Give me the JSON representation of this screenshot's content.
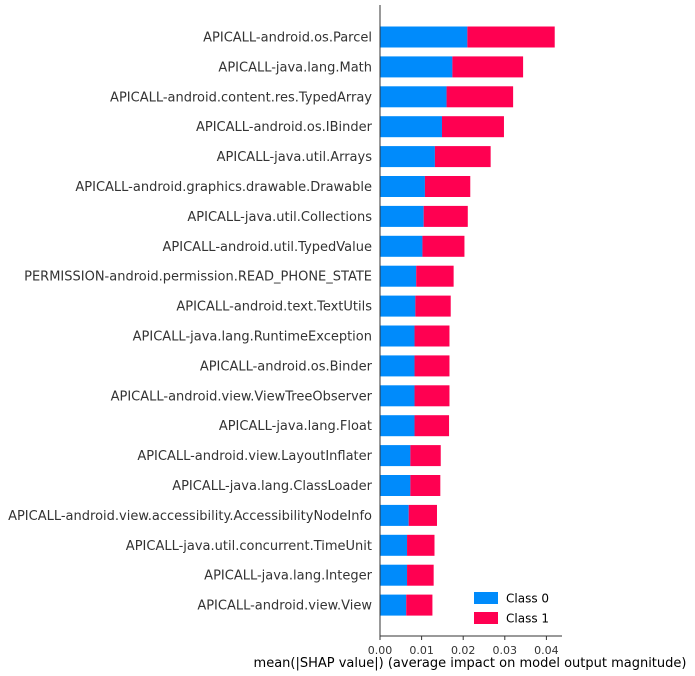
{
  "chart_data": {
    "type": "bar",
    "orientation": "horizontal",
    "stacked": true,
    "categories": [
      "APICALL-android.os.Parcel",
      "APICALL-java.lang.Math",
      "APICALL-android.content.res.TypedArray",
      "APICALL-android.os.IBinder",
      "APICALL-java.util.Arrays",
      "APICALL-android.graphics.drawable.Drawable",
      "APICALL-java.util.Collections",
      "APICALL-android.util.TypedValue",
      "PERMISSION-android.permission.READ_PHONE_STATE",
      "APICALL-android.text.TextUtils",
      "APICALL-java.lang.RuntimeException",
      "APICALL-android.os.Binder",
      "APICALL-android.view.ViewTreeObserver",
      "APICALL-java.lang.Float",
      "APICALL-android.view.LayoutInflater",
      "APICALL-java.lang.ClassLoader",
      "APICALL-android.view.accessibility.AccessibilityNodeInfo",
      "APICALL-java.util.concurrent.TimeUnit",
      "APICALL-java.lang.Integer",
      "APICALL-android.view.View"
    ],
    "series": [
      {
        "name": "Class 0",
        "color": "#008bfb",
        "values": [
          0.021,
          0.0174,
          0.016,
          0.0149,
          0.0132,
          0.0108,
          0.0105,
          0.0102,
          0.0087,
          0.0085,
          0.0083,
          0.0083,
          0.0083,
          0.0083,
          0.0073,
          0.0073,
          0.0069,
          0.0065,
          0.0065,
          0.0063
        ]
      },
      {
        "name": "Class 1",
        "color": "#ff0051",
        "values": [
          0.021,
          0.017,
          0.016,
          0.0149,
          0.0134,
          0.0109,
          0.0106,
          0.0101,
          0.009,
          0.0085,
          0.0084,
          0.0084,
          0.0084,
          0.0083,
          0.0073,
          0.0072,
          0.0068,
          0.0066,
          0.0064,
          0.0063
        ]
      }
    ],
    "xlabel": "mean(|SHAP value|) (average impact on model output magnitude)",
    "xlim": [
      0,
      0.044
    ],
    "xticks": [
      0.0,
      0.01,
      0.02,
      0.03,
      0.04
    ],
    "xtick_labels": [
      "0.00",
      "0.01",
      "0.02",
      "0.03",
      "0.04"
    ],
    "legend_position": "lower-right",
    "grid": false
  }
}
